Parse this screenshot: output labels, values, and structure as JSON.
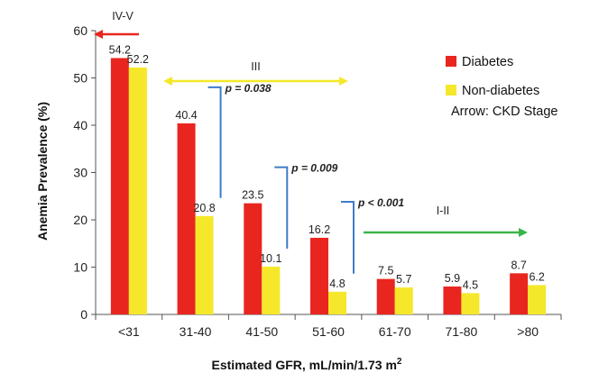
{
  "chart_data": {
    "type": "bar",
    "categories": [
      "<31",
      "31-40",
      "41-50",
      "51-60",
      "61-70",
      "71-80",
      ">80"
    ],
    "series": [
      {
        "name": "Diabetes",
        "color": "#e8261f",
        "values": [
          54.2,
          40.4,
          23.5,
          16.2,
          7.5,
          5.9,
          8.7
        ]
      },
      {
        "name": "Non-diabetes",
        "color": "#f5e82a",
        "values": [
          52.2,
          20.8,
          10.1,
          4.8,
          5.7,
          4.5,
          6.2
        ]
      }
    ],
    "value_labels": {
      "Diabetes": [
        "54.2",
        "40.4",
        "23.5",
        "16.2",
        "7.5",
        "5.9",
        "8.7"
      ],
      "Non-diabetes": [
        "52.2",
        "20.8",
        "10.1",
        "4.8",
        "5.7",
        "4.5",
        "6.2"
      ]
    },
    "title": "",
    "xlabel": "Estimated GFR, mL/min/1.73 m",
    "xlabel_superscript": "2",
    "ylabel": "Anemia Prevalence (%)",
    "ylim": [
      0,
      60
    ],
    "yticks": [
      "0",
      "10",
      "20",
      "30",
      "40",
      "50",
      "60"
    ],
    "grid": false,
    "legend_position": "top-right",
    "legend_note": "Arrow: CKD Stage",
    "stage_arrows": [
      {
        "label": "IV-V",
        "color": "#e8261f",
        "direction": "left",
        "from_category": 0,
        "to_category": 0
      },
      {
        "label": "III",
        "color": "#f5e82a",
        "direction": "both",
        "from_category": 1,
        "to_category": 3
      },
      {
        "label": "I-II",
        "color": "#3ab54a",
        "direction": "right",
        "from_category": 4,
        "to_category": 6
      }
    ],
    "significance": [
      {
        "label": "p = 0.038",
        "category": 1,
        "color": "#3d7cc9"
      },
      {
        "label": "p = 0.009",
        "category": 2,
        "color": "#3d7cc9"
      },
      {
        "label": "p < 0.001",
        "category": 3,
        "color": "#3d7cc9"
      }
    ]
  }
}
